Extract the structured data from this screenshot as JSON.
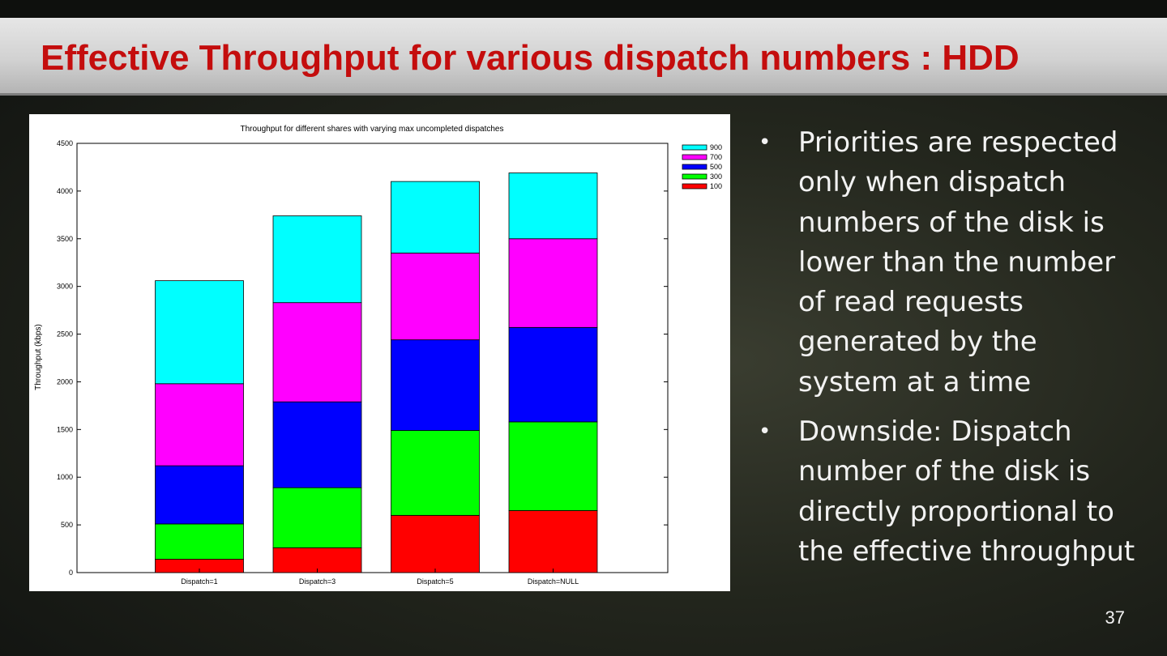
{
  "slide": {
    "title": "Effective Throughput for various dispatch numbers : HDD",
    "bullets": [
      "Priorities are respected only when dispatch numbers of the disk is lower than the number of read requests generated by the system at a time",
      "Downside: Dispatch number of the disk is directly proportional to the  effective throughput"
    ],
    "page_number": "37"
  },
  "chart_data": {
    "type": "bar",
    "stacked": true,
    "title": "Throughput for different shares with varying max uncompleted dispatches",
    "xlabel": "",
    "ylabel": "Throughput (kbps)",
    "ylim": [
      0,
      4500
    ],
    "yticks": [
      0,
      500,
      1000,
      1500,
      2000,
      2500,
      3000,
      3500,
      4000,
      4500
    ],
    "categories": [
      "Dispatch=1",
      "Dispatch=3",
      "Dispatch=5",
      "Dispatch=NULL"
    ],
    "series": [
      {
        "name": "100",
        "color": "#ff0000",
        "values": [
          140,
          260,
          600,
          650
        ]
      },
      {
        "name": "300",
        "color": "#00ff00",
        "values": [
          370,
          630,
          890,
          930
        ]
      },
      {
        "name": "500",
        "color": "#0000ff",
        "values": [
          610,
          900,
          950,
          990
        ]
      },
      {
        "name": "700",
        "color": "#ff00ff",
        "values": [
          860,
          1040,
          910,
          930
        ]
      },
      {
        "name": "900",
        "color": "#00ffff",
        "values": [
          1080,
          910,
          750,
          690
        ]
      }
    ],
    "legend_position": "top-right",
    "legend_order": [
      "900",
      "700",
      "500",
      "300",
      "100"
    ],
    "grid": false
  }
}
